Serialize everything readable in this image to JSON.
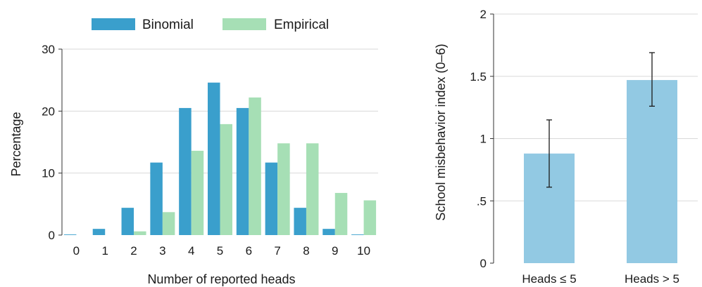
{
  "chart_data": [
    {
      "type": "bar",
      "title": "",
      "xlabel": "Number of reported heads",
      "ylabel": "Percentage",
      "categories": [
        "0",
        "1",
        "2",
        "3",
        "4",
        "5",
        "6",
        "7",
        "8",
        "9",
        "10"
      ],
      "series": [
        {
          "name": "Binomial",
          "color": "#3a9fcc",
          "values": [
            0.1,
            1.0,
            4.4,
            11.7,
            20.5,
            24.6,
            20.5,
            11.7,
            4.4,
            1.0,
            0.1
          ]
        },
        {
          "name": "Empirical",
          "color": "#a6dfb5",
          "values": [
            0,
            0,
            0.6,
            3.7,
            13.6,
            17.9,
            22.2,
            14.8,
            14.8,
            6.8,
            5.6
          ]
        }
      ],
      "ylim": [
        0,
        30
      ],
      "yticks": [
        0,
        10,
        20,
        30
      ],
      "grid": true,
      "legend": "top"
    },
    {
      "type": "bar",
      "title": "",
      "xlabel": "",
      "ylabel": "School misbehavior index (0–6)",
      "categories": [
        "Heads ≤ 5",
        "Heads > 5"
      ],
      "values": [
        0.88,
        1.47
      ],
      "error_low": [
        0.61,
        1.26
      ],
      "error_high": [
        1.15,
        1.69
      ],
      "color": "#92c9e3",
      "ylim": [
        0,
        2
      ],
      "yticks": [
        0,
        0.5,
        1,
        1.5,
        2
      ],
      "ytick_labels": [
        "0",
        ".5",
        "1",
        "1.5",
        "2"
      ],
      "grid": true
    }
  ]
}
